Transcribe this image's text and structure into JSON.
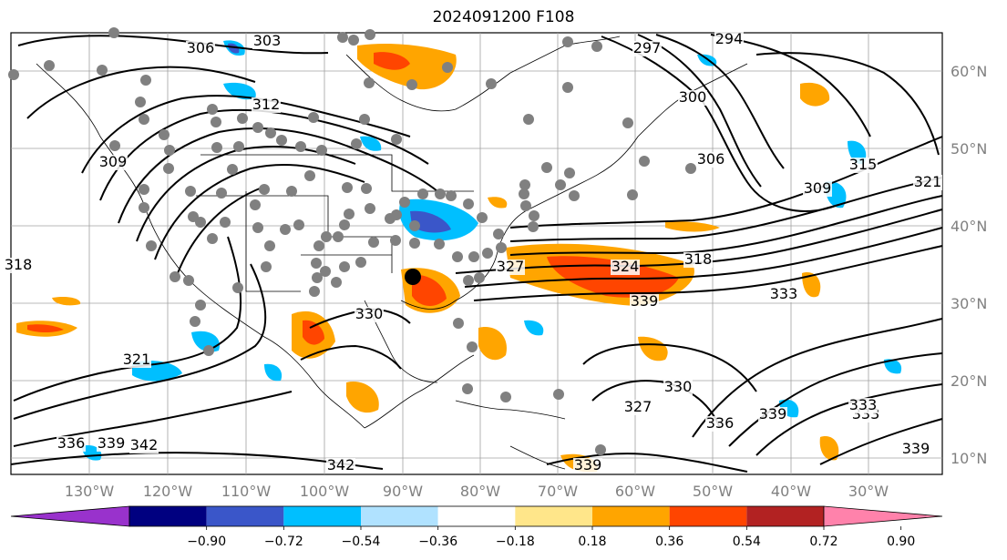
{
  "title": "2024091200 F108",
  "map": {
    "lon_ticks": [
      "130°W",
      "120°W",
      "110°W",
      "100°W",
      "90°W",
      "80°W",
      "70°W",
      "60°W",
      "50°W",
      "40°W",
      "30°W"
    ],
    "lat_ticks": [
      "60°N",
      "50°N",
      "40°N",
      "30°N",
      "20°N",
      "10°N"
    ],
    "contour_labels": [
      "306",
      "303",
      "312",
      "309",
      "318",
      "297",
      "300",
      "306",
      "294",
      "309",
      "315",
      "321",
      "324",
      "318",
      "327",
      "333",
      "339",
      "330",
      "333",
      "321",
      "327",
      "336",
      "330",
      "339",
      "333",
      "336",
      "339",
      "342",
      "342",
      "339",
      "339"
    ],
    "marker": "storm-center"
  },
  "colorbar": {
    "ticks": [
      "−0.90",
      "−0.72",
      "−0.54",
      "−0.36",
      "−0.18",
      "0.18",
      "0.36",
      "0.54",
      "0.72",
      "0.90"
    ],
    "colors": [
      "#9932cc",
      "#000080",
      "#3a56c9",
      "#00bfff",
      "#b0e2ff",
      "#ffffff",
      "#ffe68a",
      "#ffa500",
      "#ff4500",
      "#b22222",
      "#ff82ab"
    ]
  }
}
